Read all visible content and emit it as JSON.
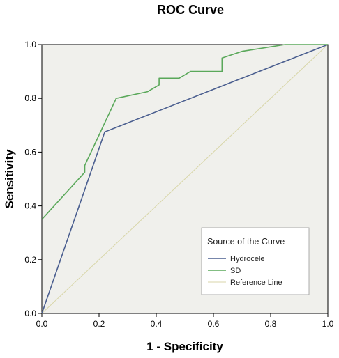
{
  "chart_data": {
    "type": "line",
    "title": "ROC Curve",
    "xlabel": "1 - Specificity",
    "ylabel": "Sensitivity",
    "xlim": [
      0,
      1
    ],
    "ylim": [
      0,
      1
    ],
    "x_ticks": [
      "0.0",
      "0.2",
      "0.4",
      "0.6",
      "0.8",
      "1.0"
    ],
    "y_ticks": [
      "0.0",
      "0.2",
      "0.4",
      "0.6",
      "0.8",
      "1.0"
    ],
    "grid": false,
    "legend": {
      "title": "Source of the Curve",
      "position": "bottom-right",
      "entries": [
        "Hydrocele",
        "SD",
        "Reference Line"
      ]
    },
    "series": [
      {
        "name": "Hydrocele",
        "color": "#4a5e8f",
        "points": [
          [
            0.0,
            0.0
          ],
          [
            0.22,
            0.675
          ],
          [
            1.0,
            1.0
          ]
        ]
      },
      {
        "name": "SD",
        "color": "#5aa85a",
        "points": [
          [
            0.0,
            0.35
          ],
          [
            0.15,
            0.525
          ],
          [
            0.15,
            0.55
          ],
          [
            0.26,
            0.8
          ],
          [
            0.37,
            0.825
          ],
          [
            0.41,
            0.85
          ],
          [
            0.41,
            0.875
          ],
          [
            0.48,
            0.875
          ],
          [
            0.52,
            0.9
          ],
          [
            0.63,
            0.9
          ],
          [
            0.63,
            0.95
          ],
          [
            0.7,
            0.975
          ],
          [
            0.85,
            1.0
          ],
          [
            1.0,
            1.0
          ]
        ]
      },
      {
        "name": "Reference Line",
        "color": "#d8d6a8",
        "points": [
          [
            0.0,
            0.0
          ],
          [
            1.0,
            1.0
          ]
        ]
      }
    ]
  }
}
